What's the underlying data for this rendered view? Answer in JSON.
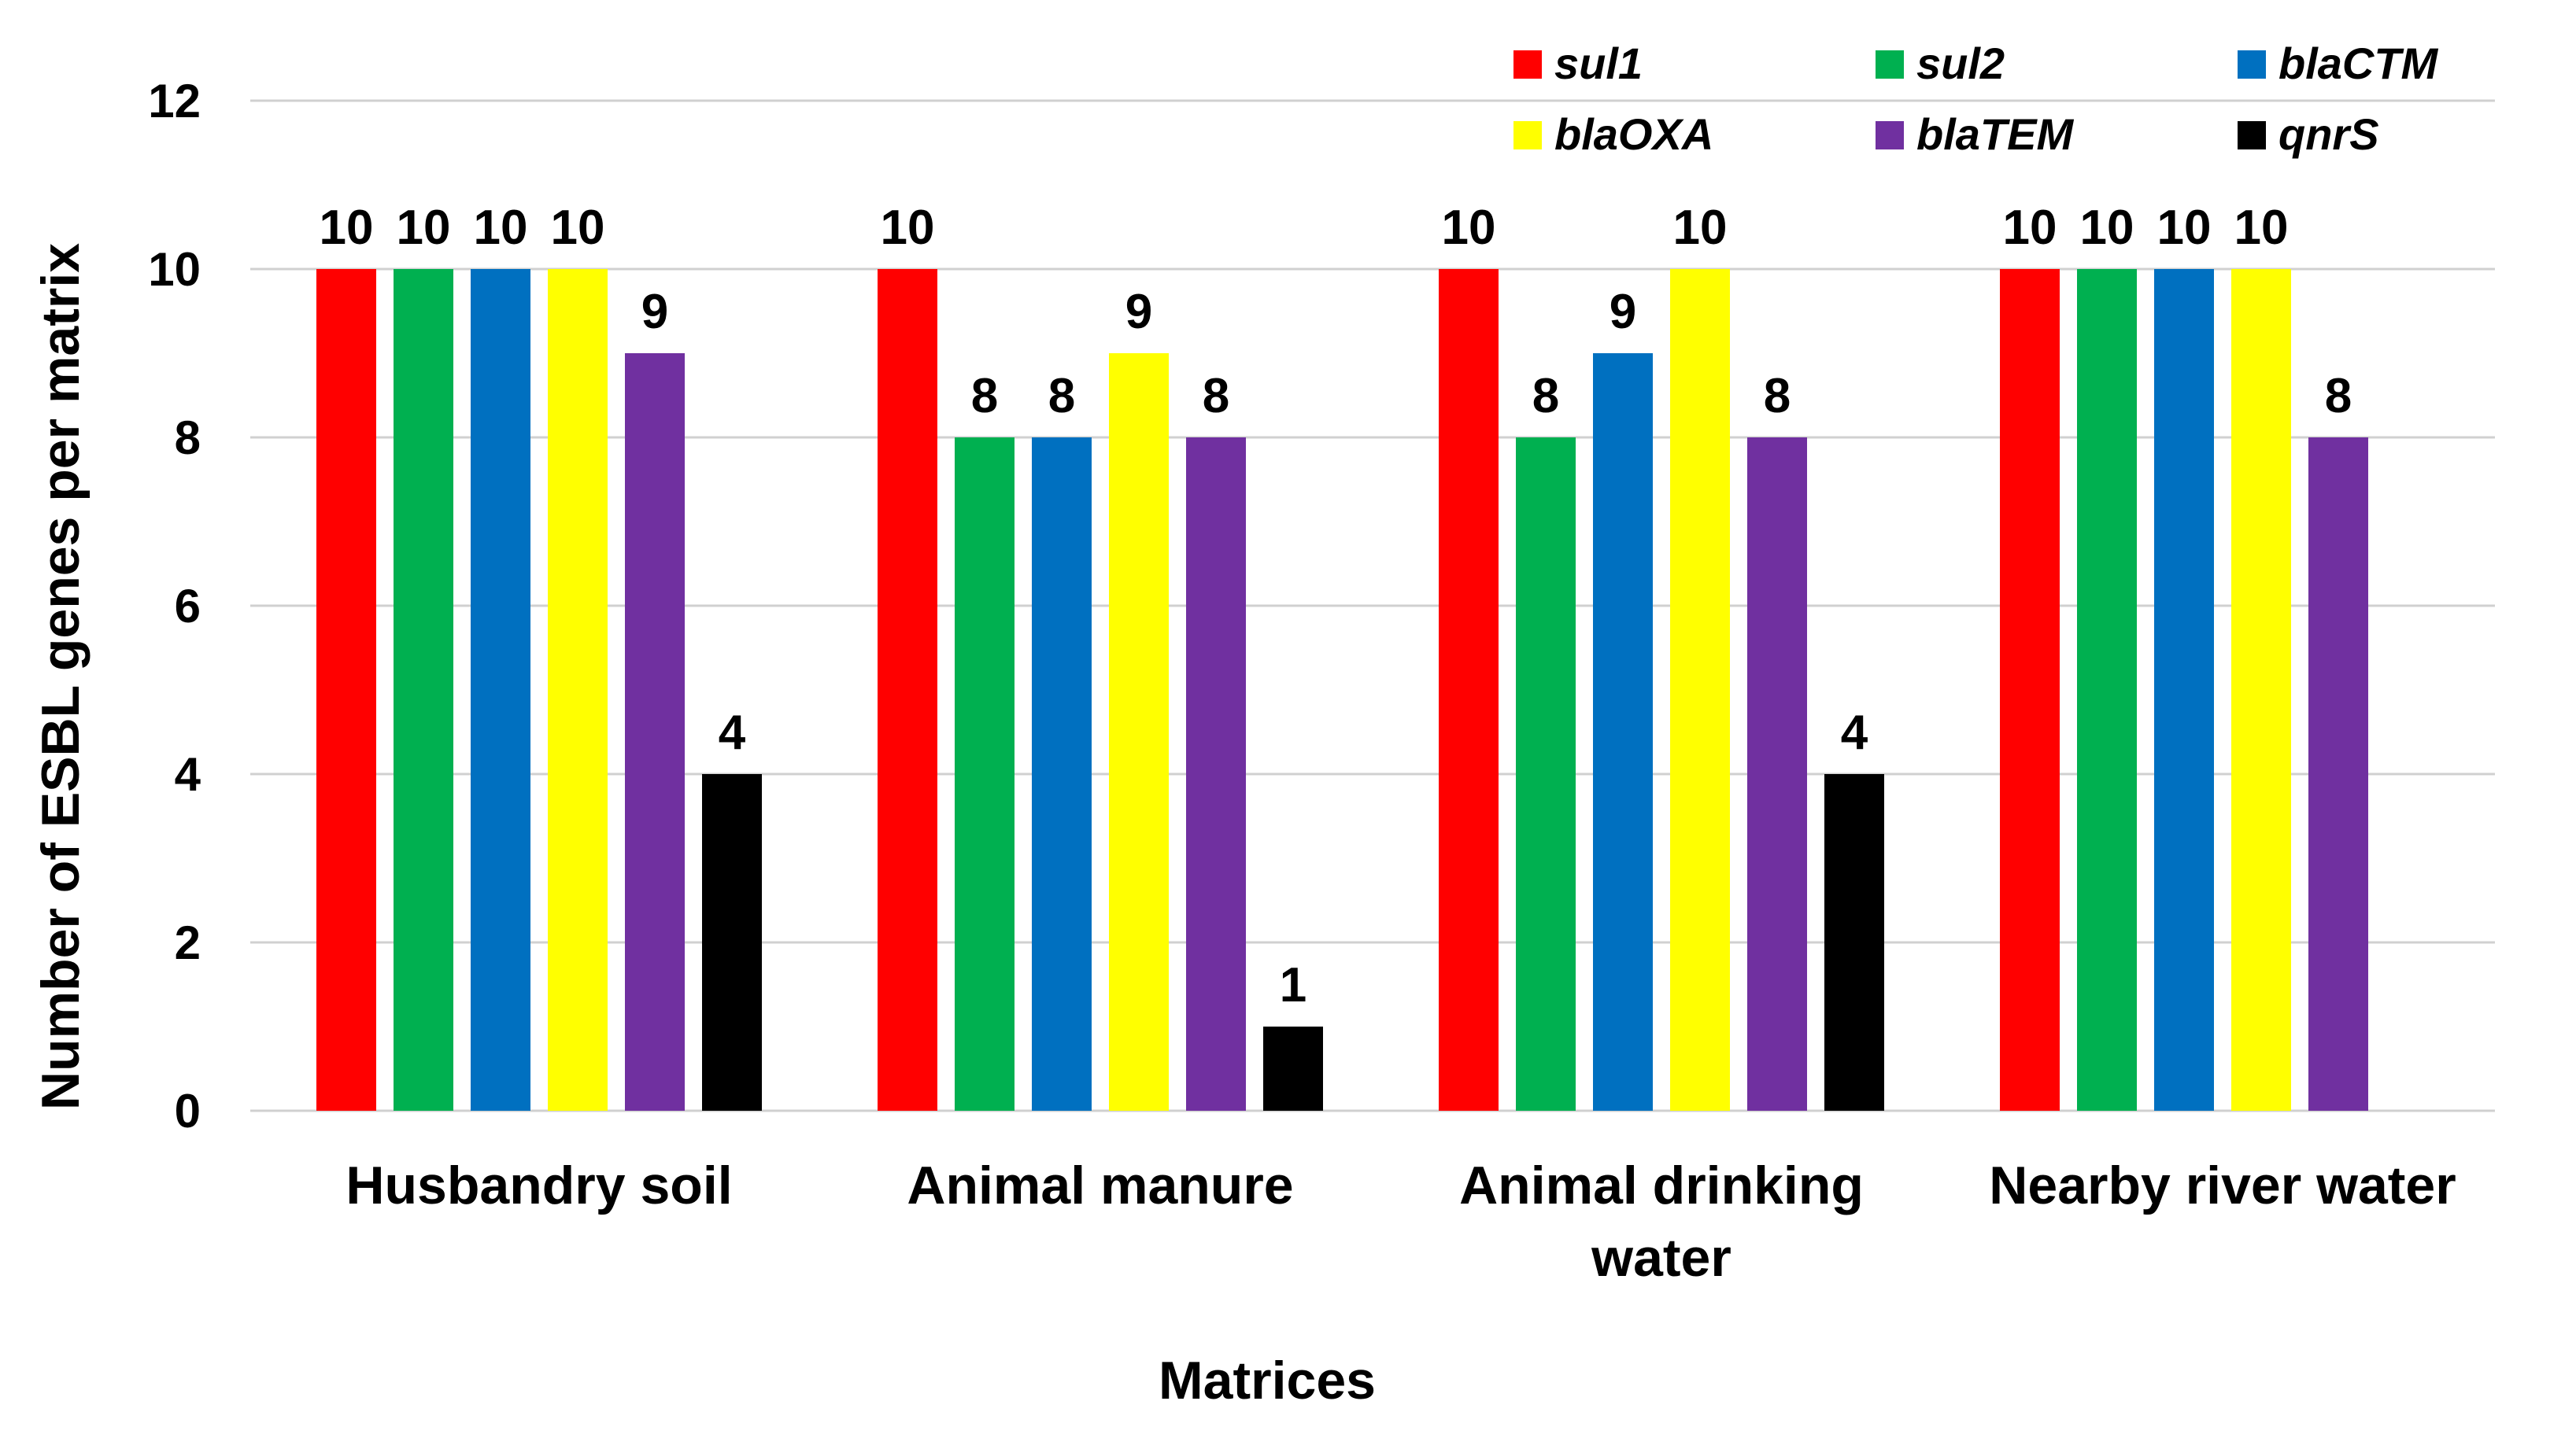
{
  "chart_data": {
    "type": "bar",
    "title": "",
    "xlabel": "Matrices",
    "ylabel": "Number of ESBL genes  per matrix",
    "ylim": [
      0,
      12
    ],
    "yticks": [
      0,
      2,
      4,
      6,
      8,
      10,
      12
    ],
    "grid": true,
    "legend_position": "top-right",
    "categories": [
      [
        "Husbandry soil"
      ],
      [
        "Animal manure"
      ],
      [
        "Animal drinking",
        "water"
      ],
      [
        "Nearby river water"
      ]
    ],
    "series": [
      {
        "name": "sul1",
        "color": "#ff0000",
        "values": [
          10,
          10,
          10,
          10
        ]
      },
      {
        "name": "sul2",
        "color": "#00b050",
        "values": [
          10,
          8,
          8,
          10
        ]
      },
      {
        "name": "blaCTM",
        "color": "#0070c0",
        "values": [
          10,
          8,
          9,
          10
        ]
      },
      {
        "name": "blaOXA",
        "color": "#ffff00",
        "values": [
          10,
          9,
          10,
          10
        ]
      },
      {
        "name": "blaTEM",
        "color": "#7030a0",
        "values": [
          9,
          8,
          8,
          8
        ]
      },
      {
        "name": "qnrS",
        "color": "#000000",
        "values": [
          4,
          1,
          4,
          null
        ]
      }
    ]
  }
}
